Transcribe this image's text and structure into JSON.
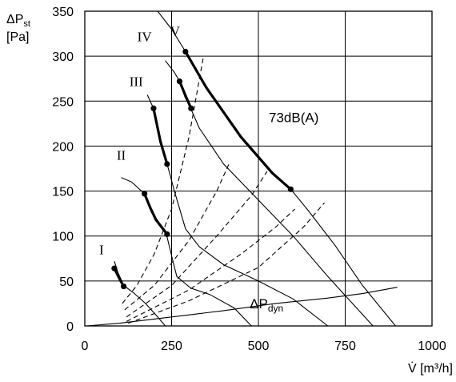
{
  "chart_data": {
    "type": "line",
    "title": "",
    "xlabel": "V̇ [m³/h]",
    "ylabel_line1": "ΔP",
    "ylabel_sub": "st",
    "ylabel_line2": "[Pa]",
    "xlim": [
      0,
      1000
    ],
    "ylim": [
      0,
      350
    ],
    "x_ticks": [
      0,
      250,
      500,
      750,
      1000
    ],
    "y_ticks": [
      0,
      50,
      100,
      150,
      200,
      250,
      300,
      350
    ],
    "x_tick_labels": [
      "0",
      "250",
      "500",
      "750",
      "1000"
    ],
    "y_tick_labels": [
      "0",
      "50",
      "100",
      "150",
      "200",
      "250",
      "300",
      "350"
    ],
    "grid": true,
    "fan_curves": [
      {
        "name": "I",
        "points": [
          [
            85,
            72
          ],
          [
            95,
            60
          ],
          [
            112,
            45
          ],
          [
            140,
            37
          ],
          [
            175,
            25
          ],
          [
            210,
            10
          ],
          [
            232,
            0
          ]
        ]
      },
      {
        "name": "II",
        "points": [
          [
            105,
            165
          ],
          [
            135,
            160
          ],
          [
            172,
            147
          ],
          [
            205,
            120
          ],
          [
            235,
            102
          ],
          [
            250,
            78
          ],
          [
            265,
            55
          ],
          [
            305,
            42
          ],
          [
            360,
            35
          ],
          [
            430,
            20
          ],
          [
            480,
            0
          ]
        ]
      },
      {
        "name": "III",
        "points": [
          [
            180,
            257
          ],
          [
            198,
            242
          ],
          [
            218,
            205
          ],
          [
            237,
            180
          ],
          [
            258,
            150
          ],
          [
            290,
            108
          ],
          [
            330,
            88
          ],
          [
            400,
            68
          ],
          [
            500,
            50
          ],
          [
            600,
            30
          ],
          [
            700,
            0
          ]
        ]
      },
      {
        "name": "IV",
        "points": [
          [
            232,
            295
          ],
          [
            258,
            282
          ],
          [
            273,
            272
          ],
          [
            288,
            255
          ],
          [
            306,
            241
          ],
          [
            330,
            220
          ],
          [
            400,
            180
          ],
          [
            500,
            140
          ],
          [
            600,
            100
          ],
          [
            700,
            55
          ],
          [
            830,
            0
          ]
        ]
      },
      {
        "name": "V",
        "points": [
          [
            210,
            350
          ],
          [
            250,
            330
          ],
          [
            290,
            305
          ],
          [
            350,
            265
          ],
          [
            450,
            210
          ],
          [
            540,
            170
          ],
          [
            593,
            152
          ],
          [
            640,
            130
          ],
          [
            720,
            90
          ],
          [
            800,
            45
          ],
          [
            895,
            0
          ]
        ]
      }
    ],
    "operating_segments": [
      {
        "name": "I",
        "points": [
          [
            85,
            64
          ],
          [
            98,
            54
          ],
          [
            112,
            44
          ]
        ]
      },
      {
        "name": "II",
        "points": [
          [
            172,
            147
          ],
          [
            190,
            130
          ],
          [
            205,
            118
          ],
          [
            237,
            102
          ]
        ]
      },
      {
        "name": "III",
        "points": [
          [
            198,
            242
          ],
          [
            218,
            205
          ],
          [
            237,
            180
          ]
        ]
      },
      {
        "name": "IV",
        "points": [
          [
            273,
            272
          ],
          [
            290,
            256
          ],
          [
            306,
            242
          ]
        ]
      },
      {
        "name": "V",
        "points": [
          [
            290,
            305
          ],
          [
            350,
            265
          ],
          [
            450,
            210
          ],
          [
            540,
            170
          ],
          [
            593,
            152
          ]
        ]
      }
    ],
    "operating_points": [
      [
        85,
        64
      ],
      [
        112,
        44
      ],
      [
        172,
        147
      ],
      [
        237,
        102
      ],
      [
        198,
        242
      ],
      [
        237,
        180
      ],
      [
        273,
        272
      ],
      [
        306,
        242
      ],
      [
        290,
        305
      ],
      [
        593,
        152
      ]
    ],
    "system_curves": [
      {
        "points": [
          [
            108,
            25
          ],
          [
            150,
            45
          ],
          [
            200,
            80
          ],
          [
            250,
            130
          ],
          [
            300,
            210
          ],
          [
            342,
            300
          ]
        ]
      },
      {
        "points": [
          [
            115,
            18
          ],
          [
            200,
            45
          ],
          [
            300,
            95
          ],
          [
            380,
            150
          ],
          [
            415,
            180
          ]
        ]
      },
      {
        "points": [
          [
            120,
            10
          ],
          [
            250,
            45
          ],
          [
            380,
            100
          ],
          [
            480,
            145
          ],
          [
            525,
            172
          ]
        ]
      },
      {
        "points": [
          [
            120,
            5
          ],
          [
            300,
            40
          ],
          [
            450,
            80
          ],
          [
            550,
            110
          ],
          [
            605,
            130
          ]
        ]
      },
      {
        "points": [
          [
            125,
            3
          ],
          [
            300,
            28
          ],
          [
            500,
            65
          ],
          [
            630,
            110
          ],
          [
            690,
            137
          ]
        ]
      }
    ],
    "dyn_curve": {
      "points": [
        [
          5,
          0
        ],
        [
          100,
          3
        ],
        [
          250,
          10
        ],
        [
          400,
          17
        ],
        [
          550,
          25
        ],
        [
          700,
          31
        ],
        [
          800,
          36
        ],
        [
          900,
          43
        ]
      ]
    },
    "labels": {
      "I": "I",
      "II": "II",
      "III": "III",
      "IV": "IV",
      "V": "V",
      "noise": "73dB(A)",
      "dyn_main": "ΔP",
      "dyn_sub": "dyn"
    },
    "label_positions": {
      "I": [
        48,
        85
      ],
      "II": [
        105,
        190
      ],
      "III": [
        148,
        272
      ],
      "IV": [
        172,
        322
      ],
      "V": [
        260,
        328
      ],
      "noise": [
        530,
        232
      ],
      "dyn": [
        475,
        25
      ]
    }
  }
}
